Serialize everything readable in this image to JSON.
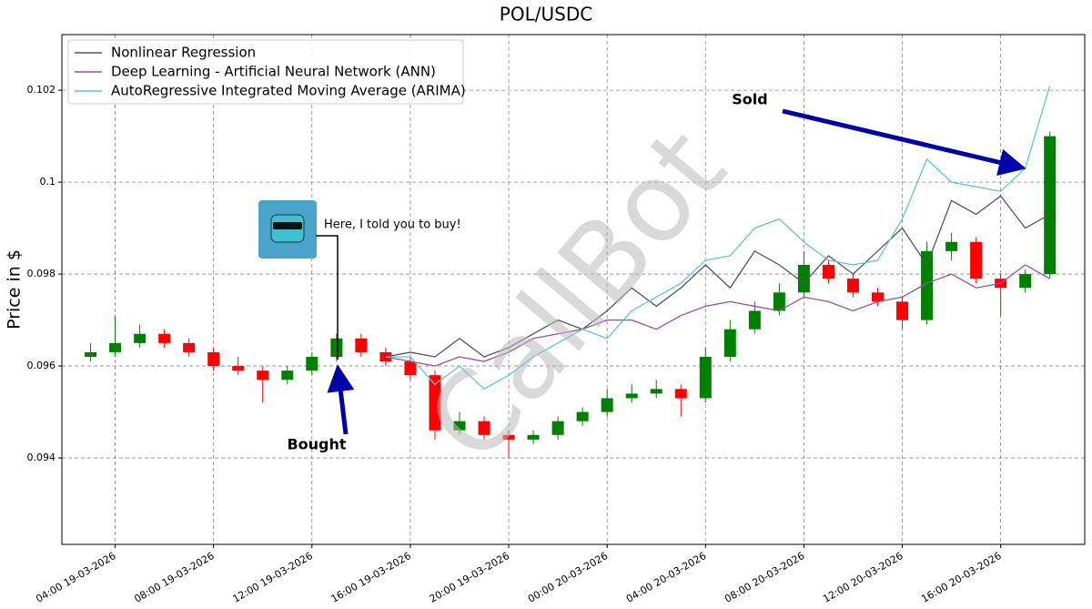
{
  "chart_data": {
    "type": "candlestick",
    "title": "POL/USDC",
    "y_label": "Price in $",
    "xlim": [
      "2026-03-19T01:50",
      "2026-03-20T19:25"
    ],
    "ylim": [
      0.09212,
      0.10321
    ],
    "xticks": [
      {
        "value": "2026-03-19T04:00",
        "label": "04:00 19-03-2026"
      },
      {
        "value": "2026-03-19T08:00",
        "label": "08:00 19-03-2026"
      },
      {
        "value": "2026-03-19T12:00",
        "label": "12:00 19-03-2026"
      },
      {
        "value": "2026-03-19T16:00",
        "label": "16:00 19-03-2026"
      },
      {
        "value": "2026-03-19T20:00",
        "label": "20:00 19-03-2026"
      },
      {
        "value": "2026-03-20T00:00",
        "label": "00:00 20-03-2026"
      },
      {
        "value": "2026-03-20T04:00",
        "label": "04:00 20-03-2026"
      },
      {
        "value": "2026-03-20T08:00",
        "label": "08:00 20-03-2026"
      },
      {
        "value": "2026-03-20T12:00",
        "label": "12:00 20-03-2026"
      },
      {
        "value": "2026-03-20T16:00",
        "label": "16:00 20-03-2026"
      }
    ],
    "yticks": [
      0.094,
      0.096,
      0.098,
      0.1,
      0.102
    ],
    "grid": true,
    "legend": "upper left",
    "up_color": "#008000",
    "down_color": "#ff0000",
    "candles": {
      "x": [
        "2026-03-19T03:00",
        "2026-03-19T04:00",
        "2026-03-19T05:00",
        "2026-03-19T06:00",
        "2026-03-19T07:00",
        "2026-03-19T08:00",
        "2026-03-19T09:00",
        "2026-03-19T10:00",
        "2026-03-19T11:00",
        "2026-03-19T12:00",
        "2026-03-19T13:00",
        "2026-03-19T14:00",
        "2026-03-19T15:00",
        "2026-03-19T16:00",
        "2026-03-19T17:00",
        "2026-03-19T18:00",
        "2026-03-19T19:00",
        "2026-03-19T20:00",
        "2026-03-19T21:00",
        "2026-03-19T22:00",
        "2026-03-19T23:00",
        "2026-03-20T00:00",
        "2026-03-20T01:00",
        "2026-03-20T02:00",
        "2026-03-20T03:00",
        "2026-03-20T04:00",
        "2026-03-20T05:00",
        "2026-03-20T06:00",
        "2026-03-20T07:00",
        "2026-03-20T08:00",
        "2026-03-20T09:00",
        "2026-03-20T10:00",
        "2026-03-20T11:00",
        "2026-03-20T12:00",
        "2026-03-20T13:00",
        "2026-03-20T14:00",
        "2026-03-20T15:00",
        "2026-03-20T16:00",
        "2026-03-20T17:00",
        "2026-03-20T18:00"
      ],
      "open": [
        0.0962,
        0.0963,
        0.0965,
        0.0967,
        0.0965,
        0.0963,
        0.096,
        0.0959,
        0.0957,
        0.0959,
        0.0962,
        0.0966,
        0.0963,
        0.0961,
        0.0958,
        0.0946,
        0.0948,
        0.0945,
        0.0944,
        0.0945,
        0.0948,
        0.095,
        0.0953,
        0.0954,
        0.0955,
        0.0953,
        0.0962,
        0.0968,
        0.0972,
        0.0976,
        0.0982,
        0.0979,
        0.0976,
        0.0974,
        0.097,
        0.0985,
        0.0987,
        0.0979,
        0.0977,
        0.098
      ],
      "high": [
        0.0965,
        0.0971,
        0.0969,
        0.0968,
        0.0966,
        0.0964,
        0.0962,
        0.096,
        0.096,
        0.0963,
        0.0967,
        0.0967,
        0.0964,
        0.0962,
        0.0959,
        0.095,
        0.0949,
        0.0946,
        0.0946,
        0.0949,
        0.0951,
        0.0955,
        0.0956,
        0.0957,
        0.0956,
        0.0964,
        0.097,
        0.0974,
        0.0978,
        0.0985,
        0.0983,
        0.098,
        0.0977,
        0.0975,
        0.0987,
        0.0989,
        0.0988,
        0.098,
        0.0981,
        0.1011
      ],
      "low": [
        0.0961,
        0.0962,
        0.0964,
        0.0964,
        0.0962,
        0.0959,
        0.0958,
        0.0952,
        0.0956,
        0.0958,
        0.0961,
        0.0962,
        0.096,
        0.0957,
        0.0944,
        0.0945,
        0.0944,
        0.094,
        0.0943,
        0.0944,
        0.0947,
        0.0949,
        0.0952,
        0.0953,
        0.0949,
        0.0952,
        0.0961,
        0.0967,
        0.0971,
        0.0975,
        0.0978,
        0.0975,
        0.0973,
        0.0968,
        0.0969,
        0.0983,
        0.0978,
        0.0971,
        0.0976,
        0.0979
      ],
      "close": [
        0.0963,
        0.0965,
        0.0967,
        0.0965,
        0.0963,
        0.096,
        0.0959,
        0.0957,
        0.0959,
        0.0962,
        0.0966,
        0.0963,
        0.0961,
        0.0958,
        0.0946,
        0.0948,
        0.0945,
        0.0944,
        0.0945,
        0.0948,
        0.095,
        0.0953,
        0.0954,
        0.0955,
        0.0953,
        0.0962,
        0.0968,
        0.0972,
        0.0976,
        0.0982,
        0.0979,
        0.0976,
        0.0974,
        0.097,
        0.0985,
        0.0987,
        0.0979,
        0.0977,
        0.098,
        0.101
      ]
    },
    "x": [
      "2026-03-19T15:00",
      "2026-03-19T16:00",
      "2026-03-19T17:00",
      "2026-03-19T18:00",
      "2026-03-19T19:00",
      "2026-03-19T20:00",
      "2026-03-19T21:00",
      "2026-03-19T22:00",
      "2026-03-19T23:00",
      "2026-03-20T00:00",
      "2026-03-20T01:00",
      "2026-03-20T02:00",
      "2026-03-20T03:00",
      "2026-03-20T04:00",
      "2026-03-20T05:00",
      "2026-03-20T06:00",
      "2026-03-20T07:00",
      "2026-03-20T08:00",
      "2026-03-20T09:00",
      "2026-03-20T10:00",
      "2026-03-20T11:00",
      "2026-03-20T12:00",
      "2026-03-20T13:00",
      "2026-03-20T14:00",
      "2026-03-20T15:00",
      "2026-03-20T16:00",
      "2026-03-20T17:00",
      "2026-03-20T18:00"
    ],
    "series": [
      {
        "name": "Nonlinear Regression",
        "color": "#555555",
        "values": [
          0.0962,
          0.0963,
          0.0962,
          0.0966,
          0.0962,
          0.0964,
          0.0967,
          0.097,
          0.0968,
          0.0972,
          0.0977,
          0.0973,
          0.0977,
          0.0982,
          0.0977,
          0.0985,
          0.0982,
          0.0978,
          0.0984,
          0.098,
          0.0985,
          0.099,
          0.0982,
          0.0996,
          0.0993,
          0.0997,
          0.099,
          0.0993
        ]
      },
      {
        "name": "Deep Learning - Artificial Neural Network (ANN)",
        "color": "#9b4fa8",
        "values": [
          0.0962,
          0.0961,
          0.096,
          0.0962,
          0.0961,
          0.0963,
          0.0966,
          0.0967,
          0.0968,
          0.097,
          0.097,
          0.0968,
          0.0971,
          0.0973,
          0.0974,
          0.0973,
          0.0972,
          0.0975,
          0.0974,
          0.0972,
          0.0974,
          0.0975,
          0.0978,
          0.098,
          0.0977,
          0.0978,
          0.0982,
          0.0979
        ]
      },
      {
        "name": "AutoRegressive Integrated Moving Average (ARIMA)",
        "color": "#5bc8d0",
        "values": [
          0.0962,
          0.0962,
          0.0956,
          0.096,
          0.0955,
          0.0958,
          0.0962,
          0.0965,
          0.0968,
          0.0966,
          0.0972,
          0.0975,
          0.0978,
          0.0983,
          0.0984,
          0.099,
          0.0992,
          0.0987,
          0.0983,
          0.0982,
          0.0983,
          0.0992,
          0.1005,
          0.1,
          0.0999,
          0.0998,
          0.1003,
          0.1021
        ]
      }
    ],
    "annotations": {
      "bought": "Bought",
      "sold": "Sold",
      "bot_message": "Here, I told you to buy!",
      "watermark": "CallBot"
    }
  }
}
